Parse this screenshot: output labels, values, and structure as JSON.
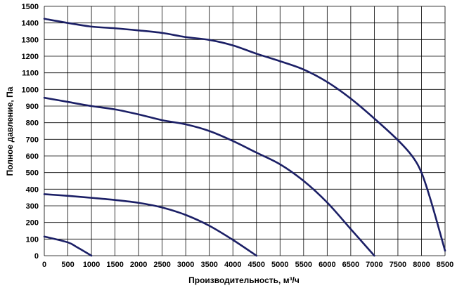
{
  "chart_data": {
    "type": "line",
    "title": "",
    "xlabel": "Производительность,  м³/ч",
    "ylabel": "Полное  давление, Па",
    "xlim": [
      0,
      8500
    ],
    "ylim": [
      0,
      1500
    ],
    "x_ticks": [
      "0",
      "500",
      "1000",
      "1500",
      "2000",
      "2500",
      "3000",
      "3500",
      "4000",
      "4500",
      "5000",
      "5500",
      "6000",
      "6500",
      "7000",
      "7500",
      "8000",
      "8500"
    ],
    "y_ticks": [
      "0",
      "100",
      "200",
      "300",
      "400",
      "500",
      "600",
      "700",
      "800",
      "900",
      "1000",
      "1100",
      "1200",
      "1300",
      "1400",
      "1500"
    ],
    "grid": true,
    "legend": "none",
    "line_color": "#1b1f66",
    "series": [
      {
        "x": [
          0,
          500,
          700,
          1000
        ],
        "y": [
          115,
          80,
          50,
          0
        ]
      },
      {
        "x": [
          0,
          500,
          1000,
          1500,
          2000,
          2500,
          3000,
          3500,
          4000,
          4500
        ],
        "y": [
          370,
          360,
          348,
          335,
          318,
          290,
          245,
          180,
          95,
          0
        ]
      },
      {
        "x": [
          0,
          500,
          1000,
          1500,
          2000,
          2500,
          3000,
          3500,
          4000,
          4500,
          5000,
          5500,
          6000,
          6500,
          7000
        ],
        "y": [
          950,
          925,
          900,
          880,
          850,
          815,
          790,
          750,
          690,
          620,
          550,
          450,
          320,
          160,
          0
        ]
      },
      {
        "x": [
          0,
          500,
          1000,
          1500,
          2000,
          2500,
          3000,
          3500,
          4000,
          4500,
          5000,
          5500,
          6000,
          6500,
          7000,
          7500,
          7800,
          8000,
          8200,
          8500
        ],
        "y": [
          1425,
          1400,
          1378,
          1368,
          1355,
          1340,
          1315,
          1298,
          1265,
          1215,
          1170,
          1120,
          1045,
          945,
          825,
          695,
          600,
          500,
          330,
          30
        ]
      }
    ]
  }
}
